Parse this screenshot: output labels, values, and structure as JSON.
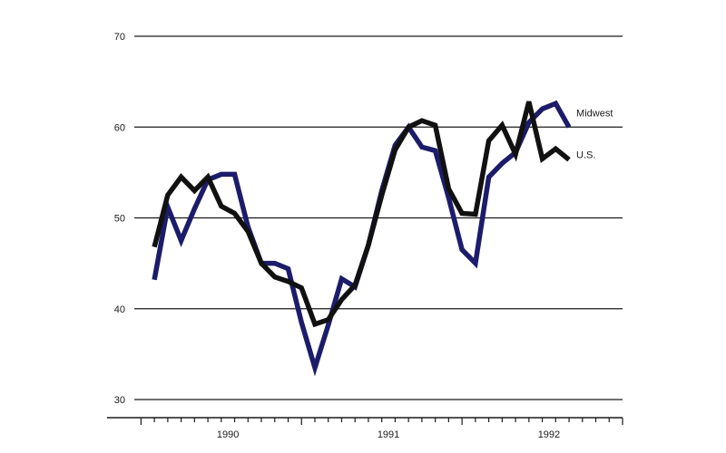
{
  "chart_data": {
    "type": "line",
    "title": "",
    "xlabel": "",
    "ylabel": "",
    "ylim": [
      30,
      70
    ],
    "y_ticks": [
      30,
      40,
      50,
      60,
      70
    ],
    "x_tick_labels": [
      {
        "label": "1990",
        "month": 6
      },
      {
        "label": "1991",
        "month": 18
      },
      {
        "label": "1992",
        "month": 30
      }
    ],
    "x_month_range": [
      -0.5,
      36
    ],
    "grid": "horizontal",
    "legend": "inline labels at line ends",
    "series": [
      {
        "name": "Midwest",
        "color": "#1c1c6b",
        "months": [
          1,
          2,
          3,
          4,
          5,
          6,
          7,
          8,
          9,
          10,
          11,
          12,
          13,
          14,
          15,
          16,
          17,
          18,
          19,
          20,
          21,
          22,
          23,
          24,
          25,
          26,
          27,
          28,
          29,
          30,
          31,
          32,
          33,
          34
        ],
        "values": [
          43.2,
          51.2,
          47.5,
          51.0,
          54.2,
          54.8,
          54.8,
          49.0,
          45.0,
          45.0,
          44.4,
          38.5,
          33.5,
          38.2,
          43.3,
          42.4,
          47.0,
          53.0,
          58.0,
          60.0,
          57.8,
          57.4,
          52.2,
          46.5,
          45.0,
          54.5,
          56.0,
          57.2,
          60.5,
          62.0,
          62.6,
          60.0,
          null,
          null
        ]
      },
      {
        "name": "U.S.",
        "color": "#111111",
        "months": [
          1,
          2,
          3,
          4,
          5,
          6,
          7,
          8,
          9,
          10,
          11,
          12,
          13,
          14,
          15,
          16,
          17,
          18,
          19,
          20,
          21,
          22,
          23,
          24,
          25,
          26,
          27,
          28,
          29,
          30,
          31,
          32,
          33,
          34
        ],
        "values": [
          46.8,
          52.5,
          54.5,
          53.0,
          54.5,
          51.3,
          50.5,
          48.5,
          45.0,
          43.5,
          43.0,
          42.3,
          38.3,
          38.8,
          41.0,
          42.6,
          47.0,
          52.5,
          57.5,
          60.0,
          60.7,
          60.2,
          53.2,
          50.5,
          50.4,
          58.5,
          60.2,
          57.0,
          62.8,
          56.5,
          57.6,
          56.4,
          null,
          null
        ]
      }
    ]
  }
}
